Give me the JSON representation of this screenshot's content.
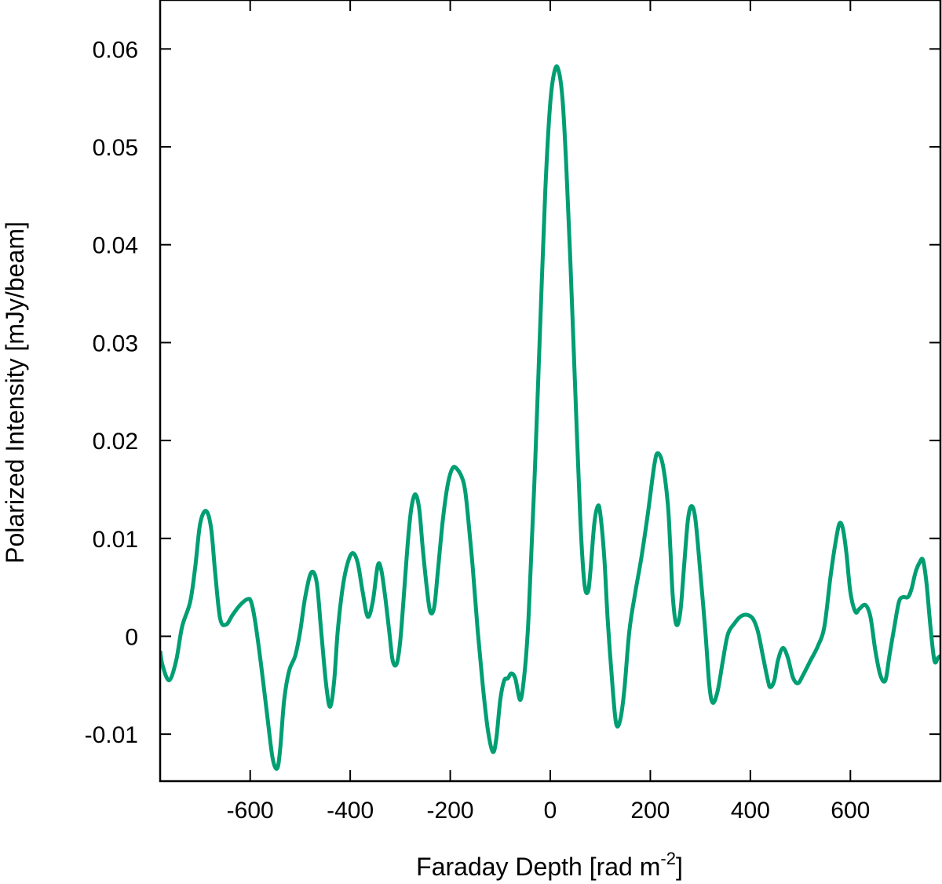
{
  "chart_data": {
    "type": "line",
    "title": "",
    "xlabel": "Faraday Depth [rad m",
    "xlabel_sup": "-2",
    "xlabel_close": "]",
    "ylabel": "Polarized Intensity [mJy/beam]",
    "xlim": [
      -780,
      780
    ],
    "ylim": [
      -0.0148,
      0.065
    ],
    "grid": false,
    "x_ticks": [
      -600,
      -400,
      -200,
      0,
      200,
      400,
      600
    ],
    "y_ticks": [
      -0.01,
      0,
      0.01,
      0.02,
      0.03,
      0.04,
      0.05,
      0.06
    ],
    "x_tick_labels": [
      "-600",
      "-400",
      "-200",
      "0",
      "200",
      "400",
      "600"
    ],
    "y_tick_labels": [
      "-0.01",
      "0",
      "0.01",
      "0.02",
      "0.03",
      "0.04",
      "0.05",
      "0.06"
    ],
    "series": [
      {
        "color": "#009e73",
        "x": [
          -780,
          -775,
          -762,
          -748,
          -736,
          -720,
          -710,
          -700,
          -688,
          -678,
          -670,
          -660,
          -648,
          -635,
          -620,
          -605,
          -598,
          -590,
          -578,
          -565,
          -555,
          -546,
          -540,
          -532,
          -522,
          -510,
          -500,
          -490,
          -478,
          -467,
          -458,
          -448,
          -440,
          -432,
          -425,
          -415,
          -405,
          -395,
          -385,
          -375,
          -365,
          -355,
          -345,
          -338,
          -330,
          -322,
          -315,
          -307,
          -300,
          -293,
          -285,
          -278,
          -270,
          -262,
          -255,
          -247,
          -240,
          -232,
          -225,
          -215,
          -205,
          -195,
          -185,
          -175,
          -170,
          -165,
          -155,
          -145,
          -135,
          -125,
          -115,
          -108,
          -100,
          -92,
          -85,
          -78,
          -70,
          -60,
          -52,
          -45,
          -40,
          -30,
          -20,
          -10,
          0,
          10,
          18,
          25,
          32,
          40,
          50,
          60,
          68,
          75,
          80,
          88,
          95,
          100,
          108,
          115,
          125,
          132,
          140,
          148,
          158,
          170,
          182,
          195,
          208,
          215,
          225,
          235,
          240,
          245,
          252,
          260,
          268,
          275,
          282,
          290,
          300,
          310,
          318,
          325,
          335,
          345,
          355,
          368,
          380,
          392,
          405,
          415,
          425,
          435,
          440,
          448,
          455,
          465,
          475,
          485,
          495,
          505,
          520,
          535,
          548,
          560,
          570,
          578,
          585,
          592,
          600,
          610,
          618,
          630,
          640,
          650,
          660,
          670,
          678,
          688,
          697,
          705,
          715,
          722,
          730,
          738,
          745,
          752,
          760,
          768,
          775,
          780
        ],
        "values": [
          -0.0015,
          -0.003,
          -0.0045,
          -0.0025,
          0.001,
          0.0035,
          0.007,
          0.0115,
          0.0128,
          0.011,
          0.0065,
          0.0018,
          0.0012,
          0.0022,
          0.0032,
          0.0038,
          0.0035,
          0.0015,
          -0.003,
          -0.0085,
          -0.0125,
          -0.0135,
          -0.0115,
          -0.0065,
          -0.0035,
          -0.002,
          0.0005,
          0.004,
          0.0065,
          0.0055,
          0.0005,
          -0.005,
          -0.0072,
          -0.0045,
          0.0005,
          0.005,
          0.0075,
          0.0085,
          0.0075,
          0.0045,
          0.002,
          0.0035,
          0.0072,
          0.0068,
          0.004,
          0.0005,
          -0.0025,
          -0.0028,
          -0.0005,
          0.004,
          0.0095,
          0.013,
          0.0145,
          0.013,
          0.009,
          0.005,
          0.0025,
          0.003,
          0.0065,
          0.0118,
          0.0155,
          0.0172,
          0.017,
          0.016,
          0.0148,
          0.0125,
          0.007,
          0.0005,
          -0.005,
          -0.0095,
          -0.0118,
          -0.0105,
          -0.0065,
          -0.0045,
          -0.0043,
          -0.0038,
          -0.0043,
          -0.0065,
          -0.004,
          0.0005,
          0.006,
          0.018,
          0.032,
          0.0455,
          0.0545,
          0.058,
          0.0575,
          0.0545,
          0.048,
          0.0385,
          0.025,
          0.012,
          0.0055,
          0.0045,
          0.0065,
          0.0115,
          0.0133,
          0.0125,
          0.008,
          0.0015,
          -0.0055,
          -0.009,
          -0.0085,
          -0.0055,
          0.0005,
          0.0045,
          0.008,
          0.0125,
          0.0175,
          0.0187,
          0.0175,
          0.0135,
          0.009,
          0.004,
          0.0012,
          0.0025,
          0.0075,
          0.0118,
          0.0133,
          0.012,
          0.0065,
          0.0005,
          -0.005,
          -0.0068,
          -0.0055,
          -0.0025,
          0.0002,
          0.0013,
          0.002,
          0.0022,
          0.0018,
          0.0005,
          -0.002,
          -0.0045,
          -0.0052,
          -0.0045,
          -0.0025,
          -0.0012,
          -0.0022,
          -0.0042,
          -0.0048,
          -0.004,
          -0.0025,
          -0.001,
          0.001,
          0.006,
          0.0095,
          0.0115,
          0.011,
          0.0085,
          0.0045,
          0.0025,
          0.0028,
          0.0032,
          0.002,
          -0.0015,
          -0.004,
          -0.0045,
          -0.002,
          0.001,
          0.0035,
          0.004,
          0.004,
          0.0048,
          0.0065,
          0.0075,
          0.0078,
          0.0055,
          0.001,
          -0.0025,
          -0.0022,
          -0.002
        ]
      }
    ]
  }
}
